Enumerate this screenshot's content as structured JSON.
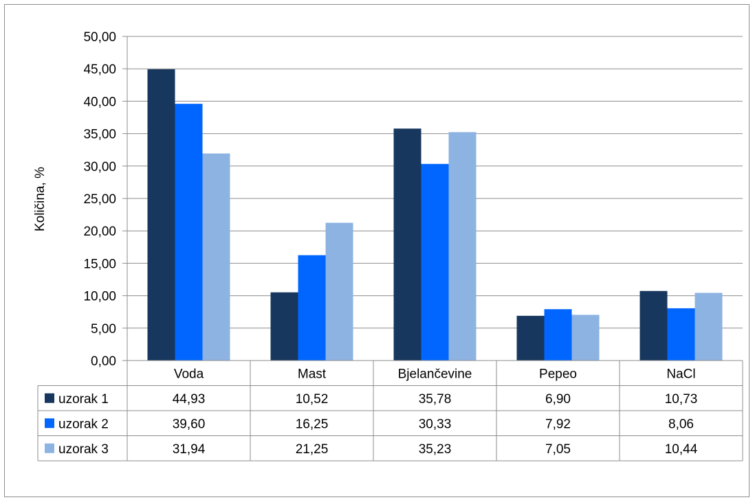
{
  "chart_data": {
    "type": "bar",
    "title": "",
    "xlabel": "",
    "ylabel": "Količina, %",
    "ylim": [
      0,
      50
    ],
    "ytick_step": 5,
    "ytick_labels": [
      "0,00",
      "5,00",
      "10,00",
      "15,00",
      "20,00",
      "25,00",
      "30,00",
      "35,00",
      "40,00",
      "45,00",
      "50,00"
    ],
    "grid": true,
    "legend": "data-table",
    "categories": [
      "Voda",
      "Mast",
      "Bjelančevine",
      "Pepeo",
      "NaCl"
    ],
    "series": [
      {
        "name": "uzorak 1",
        "color": "#17375e",
        "values": [
          44.93,
          10.52,
          35.78,
          6.9,
          10.73
        ],
        "labels": [
          "44,93",
          "10,52",
          "35,78",
          "6,90",
          "10,73"
        ]
      },
      {
        "name": "uzorak 2",
        "color": "#0066ff",
        "values": [
          39.6,
          16.25,
          30.33,
          7.92,
          8.06
        ],
        "labels": [
          "39,60",
          "16,25",
          "30,33",
          "7,92",
          "8,06"
        ]
      },
      {
        "name": "uzorak 3",
        "color": "#8db3e2",
        "values": [
          31.94,
          21.25,
          35.23,
          7.05,
          10.44
        ],
        "labels": [
          "31,94",
          "21,25",
          "35,23",
          "7,05",
          "10,44"
        ]
      }
    ]
  }
}
